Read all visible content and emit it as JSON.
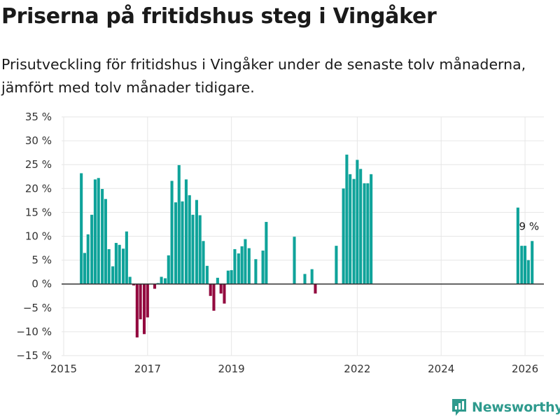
{
  "header": {
    "title": "Priserna på fritidshus steg i Vingåker",
    "subtitle": "Prisutveckling för fritidshus i Vingåker under de senaste tolv månaderna, jämfört med tolv månader tidigare."
  },
  "brand": {
    "name": "Newsworthy",
    "icon": "bar-chart-icon"
  },
  "colors": {
    "positive": "#0fa39a",
    "negative": "#930a3f",
    "grid": "#e6e6e6",
    "zero": "#333333",
    "brand": "#2e9a8d"
  },
  "chart_data": {
    "type": "bar",
    "title": "Priserna på fritidshus steg i Vingåker",
    "ylabel": "",
    "xlabel": "",
    "ylim": [
      -15,
      35
    ],
    "yticks": [
      -15,
      -10,
      -5,
      0,
      5,
      10,
      15,
      20,
      25,
      30,
      35
    ],
    "ytick_labels": [
      "−15 %",
      "−10 %",
      "−5 %",
      "0 %",
      "5 %",
      "10 %",
      "15 %",
      "20 %",
      "25 %",
      "30 %",
      "35 %"
    ],
    "xlim": [
      2014.95,
      2026.45
    ],
    "xticks": [
      2015,
      2017,
      2019,
      2022,
      2024,
      2026
    ],
    "xtick_labels": [
      "2015",
      "2017",
      "2019",
      "2022",
      "2024",
      "2026"
    ],
    "annotation": {
      "text": "9 %",
      "x": 2026.08
    },
    "series": [
      {
        "name": "Prisutveckling",
        "points": [
          {
            "x": 2015.42,
            "y": 23.2
          },
          {
            "x": 2015.5,
            "y": 6.5
          },
          {
            "x": 2015.58,
            "y": 10.4
          },
          {
            "x": 2015.67,
            "y": 14.5
          },
          {
            "x": 2015.75,
            "y": 21.9
          },
          {
            "x": 2015.83,
            "y": 22.2
          },
          {
            "x": 2015.92,
            "y": 19.9
          },
          {
            "x": 2016.0,
            "y": 17.8
          },
          {
            "x": 2016.08,
            "y": 7.3
          },
          {
            "x": 2016.17,
            "y": 3.7
          },
          {
            "x": 2016.25,
            "y": 8.6
          },
          {
            "x": 2016.33,
            "y": 8.2
          },
          {
            "x": 2016.42,
            "y": 7.4
          },
          {
            "x": 2016.5,
            "y": 11.0
          },
          {
            "x": 2016.58,
            "y": 1.5
          },
          {
            "x": 2016.67,
            "y": -0.3
          },
          {
            "x": 2016.75,
            "y": -11.2
          },
          {
            "x": 2016.83,
            "y": -7.4
          },
          {
            "x": 2016.92,
            "y": -10.5
          },
          {
            "x": 2017.0,
            "y": -7.0
          },
          {
            "x": 2017.17,
            "y": -1.0
          },
          {
            "x": 2017.25,
            "y": 0.2
          },
          {
            "x": 2017.33,
            "y": 1.5
          },
          {
            "x": 2017.42,
            "y": 1.2
          },
          {
            "x": 2017.5,
            "y": 6.0
          },
          {
            "x": 2017.58,
            "y": 21.6
          },
          {
            "x": 2017.67,
            "y": 17.1
          },
          {
            "x": 2017.75,
            "y": 24.9
          },
          {
            "x": 2017.83,
            "y": 17.3
          },
          {
            "x": 2017.92,
            "y": 21.9
          },
          {
            "x": 2018.0,
            "y": 18.6
          },
          {
            "x": 2018.08,
            "y": 14.5
          },
          {
            "x": 2018.17,
            "y": 17.6
          },
          {
            "x": 2018.25,
            "y": 14.4
          },
          {
            "x": 2018.33,
            "y": 9.0
          },
          {
            "x": 2018.42,
            "y": 3.8
          },
          {
            "x": 2018.5,
            "y": -2.5
          },
          {
            "x": 2018.58,
            "y": -5.6
          },
          {
            "x": 2018.67,
            "y": 1.3
          },
          {
            "x": 2018.75,
            "y": -2.0
          },
          {
            "x": 2018.83,
            "y": -4.1
          },
          {
            "x": 2018.92,
            "y": 2.8
          },
          {
            "x": 2019.0,
            "y": 2.9
          },
          {
            "x": 2019.08,
            "y": 7.3
          },
          {
            "x": 2019.17,
            "y": 6.4
          },
          {
            "x": 2019.25,
            "y": 7.9
          },
          {
            "x": 2019.33,
            "y": 9.4
          },
          {
            "x": 2019.42,
            "y": 7.5
          },
          {
            "x": 2019.58,
            "y": 5.2
          },
          {
            "x": 2019.75,
            "y": 7.0
          },
          {
            "x": 2019.83,
            "y": 13.0
          },
          {
            "x": 2020.5,
            "y": 9.9
          },
          {
            "x": 2020.75,
            "y": 2.1
          },
          {
            "x": 2020.92,
            "y": 3.1
          },
          {
            "x": 2021.0,
            "y": -2.0
          },
          {
            "x": 2021.5,
            "y": 8.0
          },
          {
            "x": 2021.67,
            "y": 20.0
          },
          {
            "x": 2021.75,
            "y": 27.1
          },
          {
            "x": 2021.83,
            "y": 23.0
          },
          {
            "x": 2021.92,
            "y": 22.0
          },
          {
            "x": 2022.0,
            "y": 26.0
          },
          {
            "x": 2022.08,
            "y": 24.1
          },
          {
            "x": 2022.17,
            "y": 21.1
          },
          {
            "x": 2022.25,
            "y": 21.1
          },
          {
            "x": 2022.33,
            "y": 23.0
          },
          {
            "x": 2025.83,
            "y": 16.0
          },
          {
            "x": 2025.92,
            "y": 8.0
          },
          {
            "x": 2026.0,
            "y": 8.0
          },
          {
            "x": 2026.08,
            "y": 5.0
          },
          {
            "x": 2026.17,
            "y": 9.0
          }
        ]
      }
    ]
  }
}
